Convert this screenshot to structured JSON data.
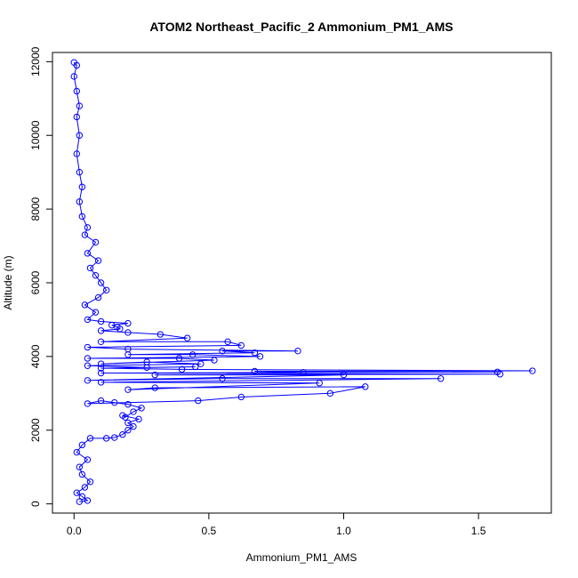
{
  "chart_data": {
    "type": "line",
    "title": "ATOM2 Northeast_Pacific_2 Ammonium_PM1_AMS",
    "xlabel": "Ammonium_PM1_AMS",
    "ylabel": "Altitude (m)",
    "xlim": [
      -0.08,
      1.77
    ],
    "ylim": [
      -250,
      12250
    ],
    "xticks": [
      0.0,
      0.5,
      1.0,
      1.5
    ],
    "xtick_labels": [
      "0.0",
      "0.5",
      "1.0",
      "1.5"
    ],
    "yticks": [
      0,
      2000,
      4000,
      6000,
      8000,
      10000,
      12000
    ],
    "ytick_labels": [
      "0",
      "2000",
      "4000",
      "6000",
      "8000",
      "10000",
      "12000"
    ],
    "grid": false,
    "legend": "none",
    "series_color": "#0000ff",
    "marker": "open-circle",
    "series": [
      {
        "points": [
          [
            0.02,
            60
          ],
          [
            0.05,
            90
          ],
          [
            0.03,
            200
          ],
          [
            0.01,
            300
          ],
          [
            0.04,
            450
          ],
          [
            0.06,
            600
          ],
          [
            0.03,
            800
          ],
          [
            0.02,
            1000
          ],
          [
            0.05,
            1200
          ],
          [
            0.01,
            1400
          ],
          [
            0.03,
            1600
          ],
          [
            0.06,
            1780
          ],
          [
            0.12,
            1780
          ],
          [
            0.15,
            1800
          ],
          [
            0.18,
            1880
          ],
          [
            0.2,
            2000
          ],
          [
            0.22,
            2100
          ],
          [
            0.2,
            2200
          ],
          [
            0.24,
            2300
          ],
          [
            0.18,
            2400
          ],
          [
            0.19,
            2350
          ],
          [
            0.22,
            2500
          ],
          [
            0.25,
            2600
          ],
          [
            0.2,
            2700
          ],
          [
            0.15,
            2750
          ],
          [
            0.1,
            2800
          ],
          [
            0.05,
            2720
          ],
          [
            0.46,
            2800
          ],
          [
            0.62,
            2900
          ],
          [
            0.95,
            3000
          ],
          [
            1.08,
            3180
          ],
          [
            0.3,
            3150
          ],
          [
            0.2,
            3100
          ],
          [
            0.91,
            3280
          ],
          [
            0.1,
            3300
          ],
          [
            1.36,
            3400
          ],
          [
            0.55,
            3400
          ],
          [
            0.05,
            3350
          ],
          [
            1.0,
            3500
          ],
          [
            0.3,
            3500
          ],
          [
            1.58,
            3520
          ],
          [
            0.1,
            3550
          ],
          [
            1.57,
            3580
          ],
          [
            0.85,
            3570
          ],
          [
            0.67,
            3600
          ],
          [
            1.7,
            3610
          ],
          [
            0.4,
            3650
          ],
          [
            0.1,
            3680
          ],
          [
            0.45,
            3720
          ],
          [
            0.27,
            3700
          ],
          [
            0.05,
            3750
          ],
          [
            0.47,
            3800
          ],
          [
            0.27,
            3850
          ],
          [
            0.1,
            3800
          ],
          [
            0.52,
            3900
          ],
          [
            0.39,
            3950
          ],
          [
            0.05,
            3950
          ],
          [
            0.69,
            4000
          ],
          [
            0.44,
            4050
          ],
          [
            0.2,
            4050
          ],
          [
            0.67,
            4100
          ],
          [
            0.55,
            4150
          ],
          [
            0.83,
            4150
          ],
          [
            0.2,
            4200
          ],
          [
            0.05,
            4250
          ],
          [
            0.62,
            4300
          ],
          [
            0.57,
            4400
          ],
          [
            0.1,
            4400
          ],
          [
            0.42,
            4500
          ],
          [
            0.32,
            4600
          ],
          [
            0.2,
            4650
          ],
          [
            0.1,
            4700
          ],
          [
            0.17,
            4750
          ],
          [
            0.16,
            4800
          ],
          [
            0.14,
            4850
          ],
          [
            0.2,
            4900
          ],
          [
            0.1,
            4950
          ],
          [
            0.05,
            5000
          ],
          [
            0.08,
            5200
          ],
          [
            0.04,
            5400
          ],
          [
            0.09,
            5600
          ],
          [
            0.12,
            5800
          ],
          [
            0.1,
            6000
          ],
          [
            0.08,
            6200
          ],
          [
            0.06,
            6400
          ],
          [
            0.09,
            6600
          ],
          [
            0.05,
            6800
          ],
          [
            0.08,
            7100
          ],
          [
            0.04,
            7300
          ],
          [
            0.05,
            7500
          ],
          [
            0.03,
            7800
          ],
          [
            0.02,
            8200
          ],
          [
            0.03,
            8600
          ],
          [
            0.02,
            9000
          ],
          [
            0.01,
            9500
          ],
          [
            0.02,
            10000
          ],
          [
            0.01,
            10500
          ],
          [
            0.02,
            10800
          ],
          [
            0.01,
            11200
          ],
          [
            0.0,
            11600
          ],
          [
            0.01,
            11900
          ],
          [
            0.0,
            11980
          ]
        ]
      }
    ]
  }
}
